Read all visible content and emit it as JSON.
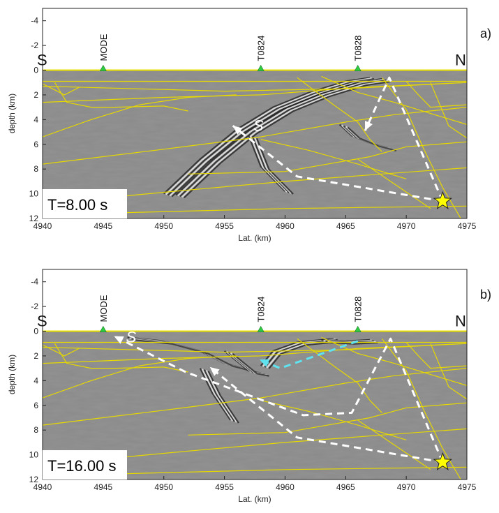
{
  "chart_data": [
    {
      "type": "heatmap",
      "panel_label": "a)",
      "time_label": "T=8.00 s",
      "xlabel": "Lat. (km)",
      "ylabel": "depth (km)",
      "xlim": [
        4940,
        4975
      ],
      "ylim": [
        12,
        -5
      ],
      "xticks": [
        4940,
        4945,
        4950,
        4955,
        4960,
        4965,
        4970,
        4975
      ],
      "yticks": [
        -4,
        -2,
        0,
        2,
        4,
        6,
        8,
        10,
        12
      ],
      "left_label": "S",
      "right_label": "N",
      "stations": [
        {
          "name": "MODE",
          "x": 4945
        },
        {
          "name": "T0824",
          "x": 4958
        },
        {
          "name": "T0828",
          "x": 4966
        }
      ],
      "source": {
        "x": 4973,
        "depth": 10.6
      },
      "wave_label": {
        "text": "S",
        "x": 4957.8,
        "depth": 4.9
      },
      "ray_paths": [
        {
          "color": "white",
          "points": [
            [
              4973,
              10.6
            ],
            [
              4961,
              8.6
            ],
            [
              4955.7,
              4.5
            ]
          ]
        },
        {
          "color": "white",
          "points": [
            [
              4973,
              10.6
            ],
            [
              4968.6,
              0.6
            ],
            [
              4966.6,
              4.9
            ]
          ]
        }
      ]
    },
    {
      "type": "heatmap",
      "panel_label": "b)",
      "time_label": "T=16.00 s",
      "xlabel": "Lat. (km)",
      "ylabel": "depth (km)",
      "xlim": [
        4940,
        4975
      ],
      "ylim": [
        12,
        -5
      ],
      "xticks": [
        4940,
        4945,
        4950,
        4955,
        4960,
        4965,
        4970,
        4975
      ],
      "yticks": [
        -4,
        -2,
        0,
        2,
        4,
        6,
        8,
        10,
        12
      ],
      "left_label": "S",
      "right_label": "N",
      "stations": [
        {
          "name": "MODE",
          "x": 4945
        },
        {
          "name": "T0824",
          "x": 4958
        },
        {
          "name": "T0828",
          "x": 4966
        }
      ],
      "source": {
        "x": 4973,
        "depth": 10.6
      },
      "wave_label": {
        "text": "S",
        "x": 4947.3,
        "depth": 0.9
      },
      "ray_paths": [
        {
          "color": "white",
          "points": [
            [
              4973,
              10.6
            ],
            [
              4961,
              8.6
            ],
            [
              4953.8,
              2.9
            ]
          ]
        },
        {
          "color": "white",
          "points": [
            [
              4973,
              10.6
            ],
            [
              4968.7,
              0.6
            ],
            [
              4965.5,
              6.6
            ],
            [
              4961.5,
              6.8
            ],
            [
              4951.8,
              3.3
            ],
            [
              4945.9,
              0.4
            ]
          ]
        },
        {
          "color": "cyan",
          "points": [
            [
              4966,
              0.8
            ],
            [
              4959.6,
              3.0
            ],
            [
              4957.9,
              2.3
            ]
          ]
        }
      ]
    }
  ]
}
